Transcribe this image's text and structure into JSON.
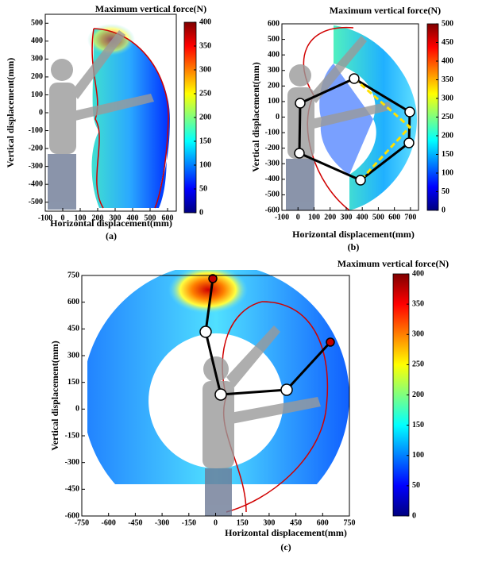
{
  "chart_data": [
    {
      "type": "heatmap",
      "caption": "(a)",
      "xlabel": "Horizontal displacement(mm)",
      "ylabel": "Vertical displacement(mm)",
      "colorbar_title": "Maximum vertical force(N)",
      "colormap": "jet",
      "xlim": [
        -100,
        650
      ],
      "xticks": [
        -100,
        0,
        100,
        200,
        300,
        400,
        500,
        600
      ],
      "ylim": [
        -550,
        550
      ],
      "yticks": [
        -500,
        -400,
        -300,
        -200,
        -100,
        0,
        100,
        200,
        300,
        400,
        500
      ],
      "clim": [
        0,
        400
      ],
      "cticks": [
        0,
        50,
        100,
        150,
        200,
        250,
        300,
        350,
        400
      ]
    },
    {
      "type": "heatmap",
      "caption": "(b)",
      "xlabel": "Horizontal displacement(mm)",
      "ylabel": "Vertical displacement(mm)",
      "colorbar_title": "Maximum vertical force(N)",
      "colormap": "jet",
      "xlim": [
        -100,
        750
      ],
      "xticks": [
        -100,
        0,
        100,
        200,
        300,
        400,
        500,
        600,
        700
      ],
      "ylim": [
        -600,
        600
      ],
      "yticks": [
        -600,
        -500,
        -400,
        -300,
        -200,
        -100,
        0,
        100,
        200,
        300,
        400,
        500,
        600
      ],
      "clim": [
        0,
        500
      ],
      "cticks": [
        0,
        50,
        100,
        150,
        200,
        250,
        300,
        350,
        400,
        450,
        500
      ]
    },
    {
      "type": "heatmap",
      "caption": "(c)",
      "xlabel": "Horizontal displacement(mm)",
      "ylabel": "Vertical displacement(mm)",
      "colorbar_title": "Maximum vertical force(N)",
      "colormap": "jet",
      "xlim": [
        -750,
        750
      ],
      "xticks": [
        -750,
        -600,
        -450,
        -300,
        -150,
        0,
        150,
        300,
        450,
        600,
        750
      ],
      "ylim": [
        -600,
        750
      ],
      "yticks": [
        -600,
        -450,
        -300,
        -150,
        0,
        150,
        300,
        450,
        600,
        750
      ],
      "clim": [
        0,
        400
      ],
      "cticks": [
        0,
        50,
        100,
        150,
        200,
        250,
        300,
        350,
        400
      ]
    }
  ]
}
